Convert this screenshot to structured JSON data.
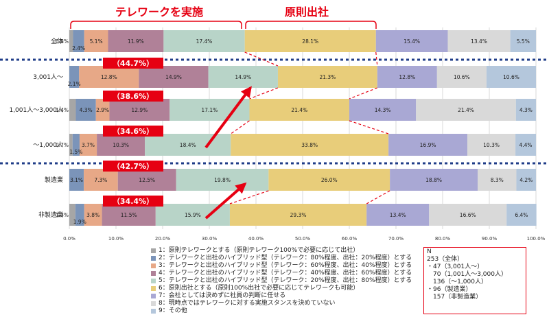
{
  "headers": {
    "telework": "テレワークを実施",
    "office": "原則出社"
  },
  "chart_data": {
    "type": "bar",
    "orientation": "horizontal-stacked-100",
    "xlim": [
      0,
      100
    ],
    "xticks": [
      "0.0%",
      "10.0%",
      "20.0%",
      "30.0%",
      "40.0%",
      "50.0%",
      "60.0%",
      "70.0%",
      "80.0%",
      "90.0%",
      "100.0%"
    ],
    "categories": [
      "全体",
      "3,001人～",
      "1,001人～3,000人",
      "～1,000人",
      "製造業",
      "非製造業"
    ],
    "series": [
      {
        "name": "1：原則テレワークとする（原則テレワーク100%で必要に応じて出社）",
        "color": "#a6a6a6",
        "values": [
          0.8,
          0,
          1.4,
          0.7,
          0,
          1.3
        ]
      },
      {
        "name": "2：テレワークと出社のハイブリッド型（テレワーク：80%程度、出社：20%程度）とする",
        "color": "#7b94b9",
        "values": [
          2.4,
          2.1,
          4.3,
          1.5,
          3.1,
          1.9
        ]
      },
      {
        "name": "3：テレワークと出社のハイブリッド型（テレワーク：60%程度、出社：40%程度）とする",
        "color": "#e7a887",
        "values": [
          5.1,
          12.8,
          2.9,
          3.7,
          7.3,
          3.8
        ]
      },
      {
        "name": "4：テレワークと出社のハイブリッド型（テレワーク：40%程度、出社：60%程度）とする",
        "color": "#b08198",
        "values": [
          11.9,
          14.9,
          12.9,
          10.3,
          12.5,
          11.5
        ]
      },
      {
        "name": "5：テレワークと出社のハイブリッド型（テレワーク：20%程度、出社：80%程度）とする",
        "color": "#b8d4c8",
        "values": [
          17.4,
          14.9,
          17.1,
          18.4,
          19.8,
          15.9
        ]
      },
      {
        "name": "6：原則出社とする（原則100%出社で必要に応じてテレワークも可能）",
        "color": "#e8cd7a",
        "values": [
          28.1,
          21.3,
          21.4,
          33.8,
          26.0,
          29.3
        ]
      },
      {
        "name": "7：会社としては決めずに社員の判断に任せる",
        "color": "#a9a8d4",
        "values": [
          15.4,
          12.8,
          14.3,
          16.9,
          18.8,
          13.4
        ]
      },
      {
        "name": "8：現時点ではテレワークに対する実施スタンスを決めていない",
        "color": "#d9d9d9",
        "values": [
          13.4,
          10.6,
          21.4,
          10.3,
          8.3,
          16.6
        ]
      },
      {
        "name": "9：その他",
        "color": "#b4c7dc",
        "values": [
          5.5,
          10.6,
          4.3,
          4.4,
          4.2,
          6.4
        ]
      }
    ],
    "callouts": [
      {
        "row": 1,
        "label": "（44.7%）"
      },
      {
        "row": 2,
        "label": "（38.6%）"
      },
      {
        "row": 3,
        "label": "（34.6%）"
      },
      {
        "row": 4,
        "label": "（42.7%）"
      },
      {
        "row": 5,
        "label": "（34.4%）"
      }
    ],
    "value_labels": [
      [
        "0.8%",
        "2.4%",
        "5.1%",
        "11.9%",
        "17.4%",
        "28.1%",
        "15.4%",
        "13.4%",
        "5.5%"
      ],
      [
        "",
        "2.1%",
        "12.8%",
        "14.9%",
        "14.9%",
        "21.3%",
        "12.8%",
        "10.6%",
        "10.6%"
      ],
      [
        "1.4%",
        "4.3%",
        "2.9%",
        "12.9%",
        "17.1%",
        "21.4%",
        "14.3%",
        "21.4%",
        "4.3%"
      ],
      [
        "0.7%",
        "1.5%",
        "3.7%",
        "10.3%",
        "18.4%",
        "33.8%",
        "16.9%",
        "10.3%",
        "4.4%"
      ],
      [
        "",
        "3.1%",
        "7.3%",
        "12.5%",
        "19.8%",
        "26.0%",
        "18.8%",
        "8.3%",
        "4.2%"
      ],
      [
        "1.3%",
        "1.9%",
        "3.8%",
        "11.5%",
        "15.9%",
        "29.3%",
        "13.4%",
        "16.6%",
        "6.4%"
      ]
    ],
    "grid": true,
    "legend_position": "bottom"
  },
  "nbox": {
    "title": "N",
    "lines": [
      "253（全体）",
      "・47（3,001人～）",
      "　70（1,001人～3,000人）",
      "　136（～1,000人）",
      "・96（製造業）",
      "　157（非製造業）"
    ]
  }
}
